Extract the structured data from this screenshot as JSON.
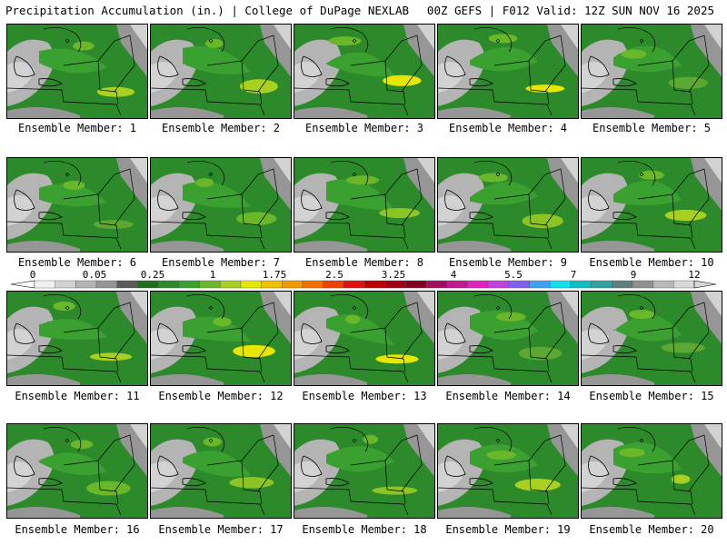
{
  "header": {
    "title_left": "Precipitation Accumulation (in.) | College of DuPage NEXLAB",
    "title_right": "00Z GEFS | F012 Valid: 12Z SUN NOV 16 2025"
  },
  "panels": [
    {
      "label": "Ensemble Member: 1"
    },
    {
      "label": "Ensemble Member: 2"
    },
    {
      "label": "Ensemble Member: 3"
    },
    {
      "label": "Ensemble Member: 4"
    },
    {
      "label": "Ensemble Member: 5"
    },
    {
      "label": "Ensemble Member: 6"
    },
    {
      "label": "Ensemble Member: 7"
    },
    {
      "label": "Ensemble Member: 8"
    },
    {
      "label": "Ensemble Member: 9"
    },
    {
      "label": "Ensemble Member: 10"
    },
    {
      "label": "Ensemble Member: 11"
    },
    {
      "label": "Ensemble Member: 12"
    },
    {
      "label": "Ensemble Member: 13"
    },
    {
      "label": "Ensemble Member: 14"
    },
    {
      "label": "Ensemble Member: 15"
    },
    {
      "label": "Ensemble Member: 16"
    },
    {
      "label": "Ensemble Member: 17"
    },
    {
      "label": "Ensemble Member: 18"
    },
    {
      "label": "Ensemble Member: 19"
    },
    {
      "label": "Ensemble Member: 20"
    }
  ],
  "colorbar": {
    "labels": [
      "0",
      "0.05",
      "0.25",
      "1",
      "1.75",
      "2.5",
      "3.25",
      "4",
      "5.5",
      "7",
      "9",
      "12"
    ],
    "colors": [
      "#f0f0f0",
      "#d2d2d2",
      "#b4b4b4",
      "#969696",
      "#5a5a5a",
      "#1e6e1e",
      "#2a8a28",
      "#3aa030",
      "#6ab82a",
      "#a8d020",
      "#e6e600",
      "#f0c000",
      "#f09a00",
      "#f07000",
      "#f04000",
      "#e01010",
      "#c00000",
      "#a00010",
      "#800020",
      "#a01060",
      "#c01890",
      "#e020c0",
      "#c040e0",
      "#8060f0",
      "#40a0f0",
      "#10e0f0",
      "#10c0c0",
      "#30a0a0",
      "#608080",
      "#909090",
      "#b8b8b8",
      "#d8d8d8"
    ]
  }
}
